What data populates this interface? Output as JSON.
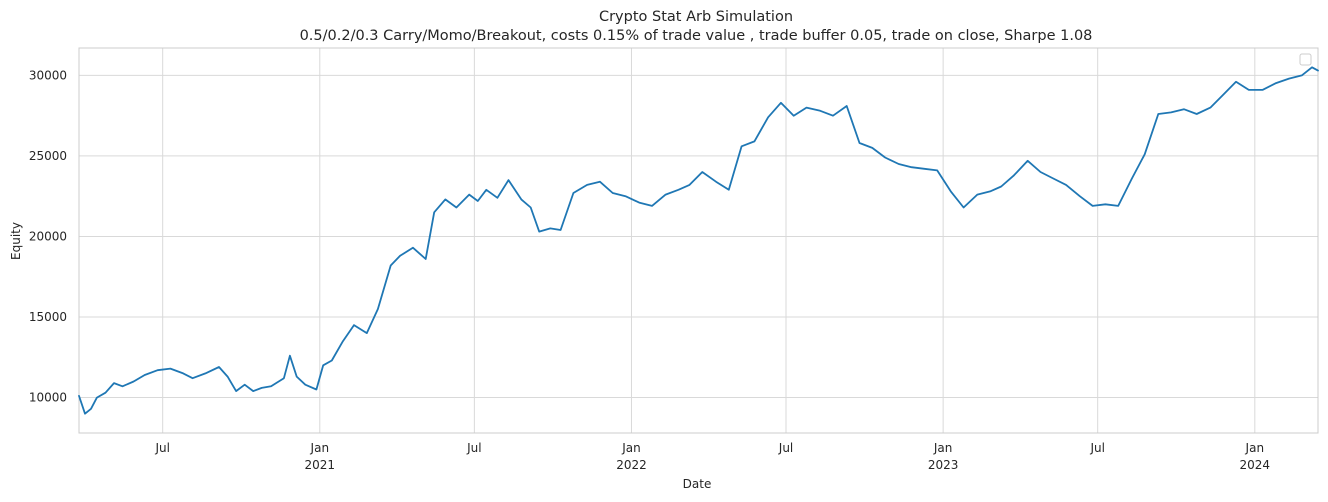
{
  "chart_data": {
    "type": "line",
    "title": "Crypto Stat Arb Simulation",
    "subtitle": "0.5/0.2/0.3 Carry/Momo/Breakout, costs 0.15% of trade value , trade buffer 0.05, trade on close, Sharpe 1.08",
    "xlabel": "Date",
    "ylabel": "Equity",
    "xlim": [
      "2020-03-25",
      "2024-03-15"
    ],
    "ylim": [
      7800,
      31700
    ],
    "yticks": [
      10000,
      15000,
      20000,
      25000,
      30000
    ],
    "ytick_labels": [
      "10000",
      "15000",
      "20000",
      "25000",
      "30000"
    ],
    "xticks": [
      {
        "date": "2020-07-01",
        "label": "Jul",
        "sublabel": ""
      },
      {
        "date": "2021-01-01",
        "label": "Jan",
        "sublabel": "2021"
      },
      {
        "date": "2021-07-01",
        "label": "Jul",
        "sublabel": ""
      },
      {
        "date": "2022-01-01",
        "label": "Jan",
        "sublabel": "2022"
      },
      {
        "date": "2022-07-01",
        "label": "Jul",
        "sublabel": ""
      },
      {
        "date": "2023-01-01",
        "label": "Jan",
        "sublabel": "2023"
      },
      {
        "date": "2023-07-01",
        "label": "Jul",
        "sublabel": ""
      },
      {
        "date": "2024-01-01",
        "label": "Jan",
        "sublabel": "2024"
      }
    ],
    "grid": true,
    "legend": {
      "location": "upper right",
      "entries": []
    },
    "series": [
      {
        "color": "#1f77b4",
        "x": [
          "2020-03-25",
          "2020-04-01",
          "2020-04-08",
          "2020-04-15",
          "2020-04-25",
          "2020-05-05",
          "2020-05-15",
          "2020-05-28",
          "2020-06-10",
          "2020-06-25",
          "2020-07-10",
          "2020-07-25",
          "2020-08-05",
          "2020-08-20",
          "2020-09-05",
          "2020-09-15",
          "2020-09-25",
          "2020-10-05",
          "2020-10-15",
          "2020-10-25",
          "2020-11-05",
          "2020-11-20",
          "2020-11-27",
          "2020-12-05",
          "2020-12-15",
          "2020-12-28",
          "2021-01-05",
          "2021-01-15",
          "2021-01-28",
          "2021-02-10",
          "2021-02-25",
          "2021-03-10",
          "2021-03-25",
          "2021-04-05",
          "2021-04-20",
          "2021-05-05",
          "2021-05-15",
          "2021-05-28",
          "2021-06-10",
          "2021-06-25",
          "2021-07-05",
          "2021-07-15",
          "2021-07-28",
          "2021-08-10",
          "2021-08-25",
          "2021-09-05",
          "2021-09-15",
          "2021-09-28",
          "2021-10-10",
          "2021-10-25",
          "2021-11-10",
          "2021-11-25",
          "2021-12-10",
          "2021-12-25",
          "2022-01-10",
          "2022-01-25",
          "2022-02-10",
          "2022-02-25",
          "2022-03-10",
          "2022-03-25",
          "2022-04-10",
          "2022-04-25",
          "2022-05-10",
          "2022-05-25",
          "2022-06-10",
          "2022-06-25",
          "2022-07-10",
          "2022-07-25",
          "2022-08-10",
          "2022-08-25",
          "2022-09-10",
          "2022-09-25",
          "2022-10-10",
          "2022-10-25",
          "2022-11-10",
          "2022-11-25",
          "2022-12-10",
          "2022-12-25",
          "2023-01-10",
          "2023-01-25",
          "2023-02-10",
          "2023-02-25",
          "2023-03-10",
          "2023-03-25",
          "2023-04-10",
          "2023-04-25",
          "2023-05-10",
          "2023-05-25",
          "2023-06-10",
          "2023-06-25",
          "2023-07-10",
          "2023-07-25",
          "2023-08-10",
          "2023-08-25",
          "2023-09-10",
          "2023-09-25",
          "2023-10-10",
          "2023-10-25",
          "2023-11-10",
          "2023-11-25",
          "2023-12-10",
          "2023-12-25",
          "2024-01-10",
          "2024-01-25",
          "2024-02-10",
          "2024-02-25",
          "2024-03-08",
          "2024-03-15"
        ],
        "y": [
          10100,
          9000,
          9300,
          10000,
          10300,
          10900,
          10700,
          11000,
          11400,
          11700,
          11800,
          11500,
          11200,
          11500,
          11900,
          11300,
          10400,
          10800,
          10400,
          10600,
          10700,
          11200,
          12600,
          11300,
          10800,
          10500,
          12000,
          12300,
          13500,
          14500,
          14000,
          15500,
          18200,
          18800,
          19300,
          18600,
          21500,
          22300,
          21800,
          22600,
          22200,
          22900,
          22400,
          23500,
          22300,
          21800,
          20300,
          20500,
          20400,
          22700,
          23200,
          23400,
          22700,
          22500,
          22100,
          21900,
          22600,
          22900,
          23200,
          24000,
          23400,
          22900,
          25600,
          25900,
          27400,
          28300,
          27500,
          28000,
          27800,
          27500,
          28100,
          25800,
          25500,
          24900,
          24500,
          24300,
          24200,
          24100,
          22800,
          21800,
          22600,
          22800,
          23100,
          23800,
          24700,
          24000,
          23600,
          23200,
          22500,
          21900,
          22000,
          21900,
          23600,
          25100,
          27600,
          27700,
          27900,
          27600,
          28000,
          28800,
          29600,
          29100,
          29100,
          29500,
          29800,
          30000,
          30500,
          30300
        ]
      }
    ]
  }
}
